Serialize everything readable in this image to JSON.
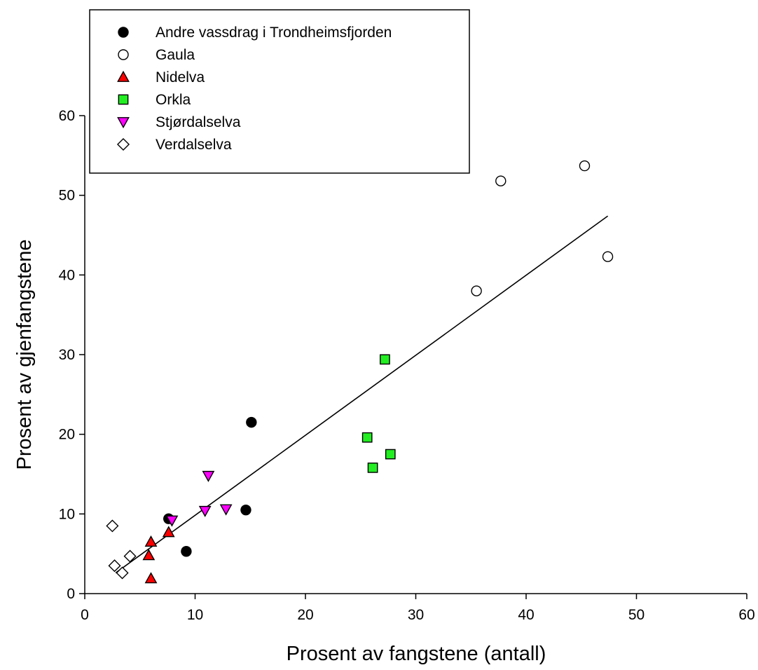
{
  "chart_data": {
    "type": "scatter",
    "xlabel": "Prosent av fangstene (antall)",
    "ylabel": "Prosent av gjenfangstene",
    "xlim": [
      0,
      60
    ],
    "ylim": [
      0,
      60
    ],
    "xticks": [
      0,
      10,
      20,
      30,
      40,
      50,
      60
    ],
    "yticks": [
      0,
      10,
      20,
      30,
      40,
      50,
      60
    ],
    "grid": false,
    "legend_position": "top-left",
    "series": [
      {
        "name": "Andre vassdrag i Trondheimsfjorden",
        "marker": "circle",
        "fill": "#000000",
        "points": [
          [
            7.6,
            9.4
          ],
          [
            9.2,
            5.3
          ],
          [
            14.6,
            10.5
          ],
          [
            15.1,
            21.5
          ]
        ]
      },
      {
        "name": "Gaula",
        "marker": "circle",
        "fill": "#ffffff",
        "points": [
          [
            35.5,
            38.0
          ],
          [
            37.7,
            51.8
          ],
          [
            45.3,
            53.7
          ],
          [
            47.4,
            42.3
          ]
        ]
      },
      {
        "name": "Nidelva",
        "marker": "triangle-up",
        "fill": "#ff0000",
        "points": [
          [
            5.8,
            4.8
          ],
          [
            6.0,
            1.9
          ],
          [
            6.0,
            6.5
          ],
          [
            7.6,
            7.7
          ]
        ]
      },
      {
        "name": "Orkla",
        "marker": "square",
        "fill": "#22ee22",
        "points": [
          [
            25.6,
            19.6
          ],
          [
            26.1,
            15.8
          ],
          [
            27.2,
            29.4
          ],
          [
            27.7,
            17.5
          ]
        ]
      },
      {
        "name": "Stjørdalselva",
        "marker": "triangle-down",
        "fill": "#ff00ff",
        "points": [
          [
            7.9,
            9.2
          ],
          [
            10.9,
            10.4
          ],
          [
            11.2,
            14.8
          ],
          [
            12.8,
            10.6
          ]
        ]
      },
      {
        "name": "Verdalselva",
        "marker": "diamond",
        "fill": "#ffffff",
        "points": [
          [
            2.5,
            8.5
          ],
          [
            2.7,
            3.5
          ],
          [
            3.4,
            2.6
          ],
          [
            4.1,
            4.7
          ]
        ]
      }
    ],
    "trendline": {
      "x": [
        2.8,
        47.4
      ],
      "y": [
        2.6,
        47.4
      ]
    }
  }
}
